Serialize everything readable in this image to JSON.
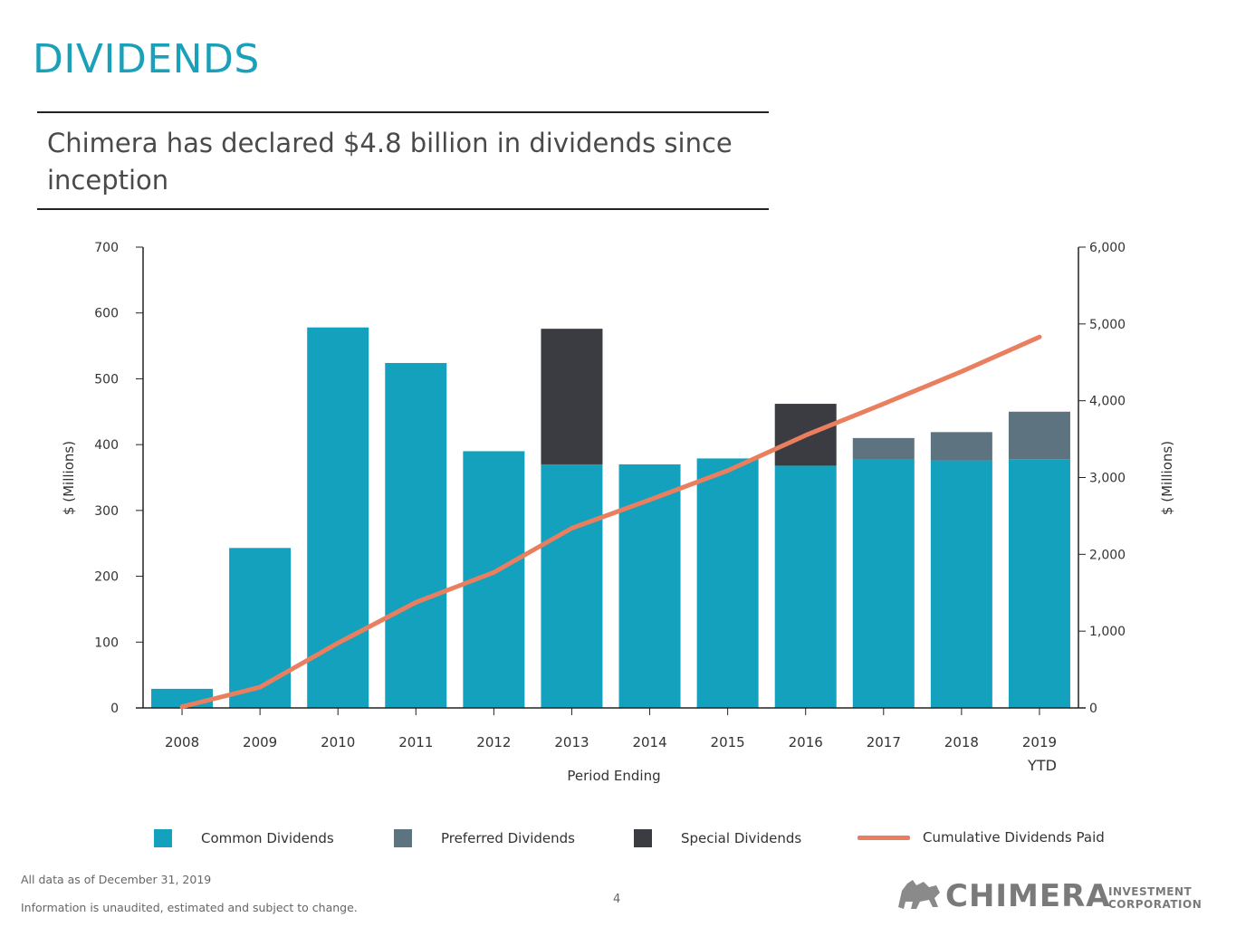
{
  "page": {
    "title": "DIVIDENDS",
    "subtitle": "Chimera has declared $4.8 billion in dividends since inception",
    "footnote_1": "All data as of December 31, 2019",
    "footnote_2": "Information is unaudited, estimated and subject to change.",
    "page_number": "4"
  },
  "logo": {
    "name": "CHIMERA",
    "sub_1": "INVESTMENT",
    "sub_2": "CORPORATION"
  },
  "legend": {
    "common": "Common Dividends",
    "preferred": "Preferred Dividends",
    "special": "Special Dividends",
    "cumulative": "Cumulative Dividends Paid"
  },
  "colors": {
    "common": "#13a1bd",
    "preferred": "#5e7380",
    "special": "#3b3c42",
    "cumulative": "#ea7f5f",
    "title": "#1aa0b8"
  },
  "chart_data": {
    "type": "bar",
    "stacked": true,
    "title": "",
    "xlabel": "Period Ending",
    "ylabel": "$ (Millions)",
    "y2label": "$ (Millions)",
    "categories": [
      "2008",
      "2009",
      "2010",
      "2011",
      "2012",
      "2013",
      "2014",
      "2015",
      "2016",
      "2017",
      "2018",
      "2019"
    ],
    "category_sublabels": [
      "",
      "",
      "",
      "",
      "",
      "",
      "",
      "",
      "",
      "",
      "",
      "YTD"
    ],
    "ylim": [
      0,
      700
    ],
    "yticks": [
      0,
      100,
      200,
      300,
      400,
      500,
      600,
      700
    ],
    "ytick_labels": [
      "0",
      "100",
      "200",
      "300",
      "400",
      "500",
      "600",
      "700"
    ],
    "y2lim": [
      0,
      6000
    ],
    "y2ticks": [
      0,
      1000,
      2000,
      3000,
      4000,
      5000,
      6000
    ],
    "y2tick_labels": [
      "0",
      "1,000",
      "2,000",
      "3,000",
      "4,000",
      "5,000",
      "6,000"
    ],
    "series": [
      {
        "name": "Common Dividends",
        "axis": "left",
        "kind": "bar",
        "values": [
          29,
          243,
          578,
          524,
          390,
          370,
          370,
          379,
          368,
          377,
          376,
          378
        ]
      },
      {
        "name": "Preferred Dividends",
        "axis": "left",
        "kind": "bar",
        "values": [
          0,
          0,
          0,
          0,
          0,
          0,
          0,
          0,
          0,
          33,
          43,
          72
        ]
      },
      {
        "name": "Special Dividends",
        "axis": "left",
        "kind": "bar",
        "values": [
          0,
          0,
          0,
          0,
          0,
          206,
          0,
          0,
          94,
          0,
          0,
          0
        ]
      },
      {
        "name": "Cumulative Dividends Paid",
        "axis": "right",
        "kind": "line",
        "values": [
          15,
          270,
          845,
          1375,
          1765,
          2340,
          2710,
          3090,
          3550,
          3960,
          4380,
          4830
        ]
      }
    ]
  }
}
